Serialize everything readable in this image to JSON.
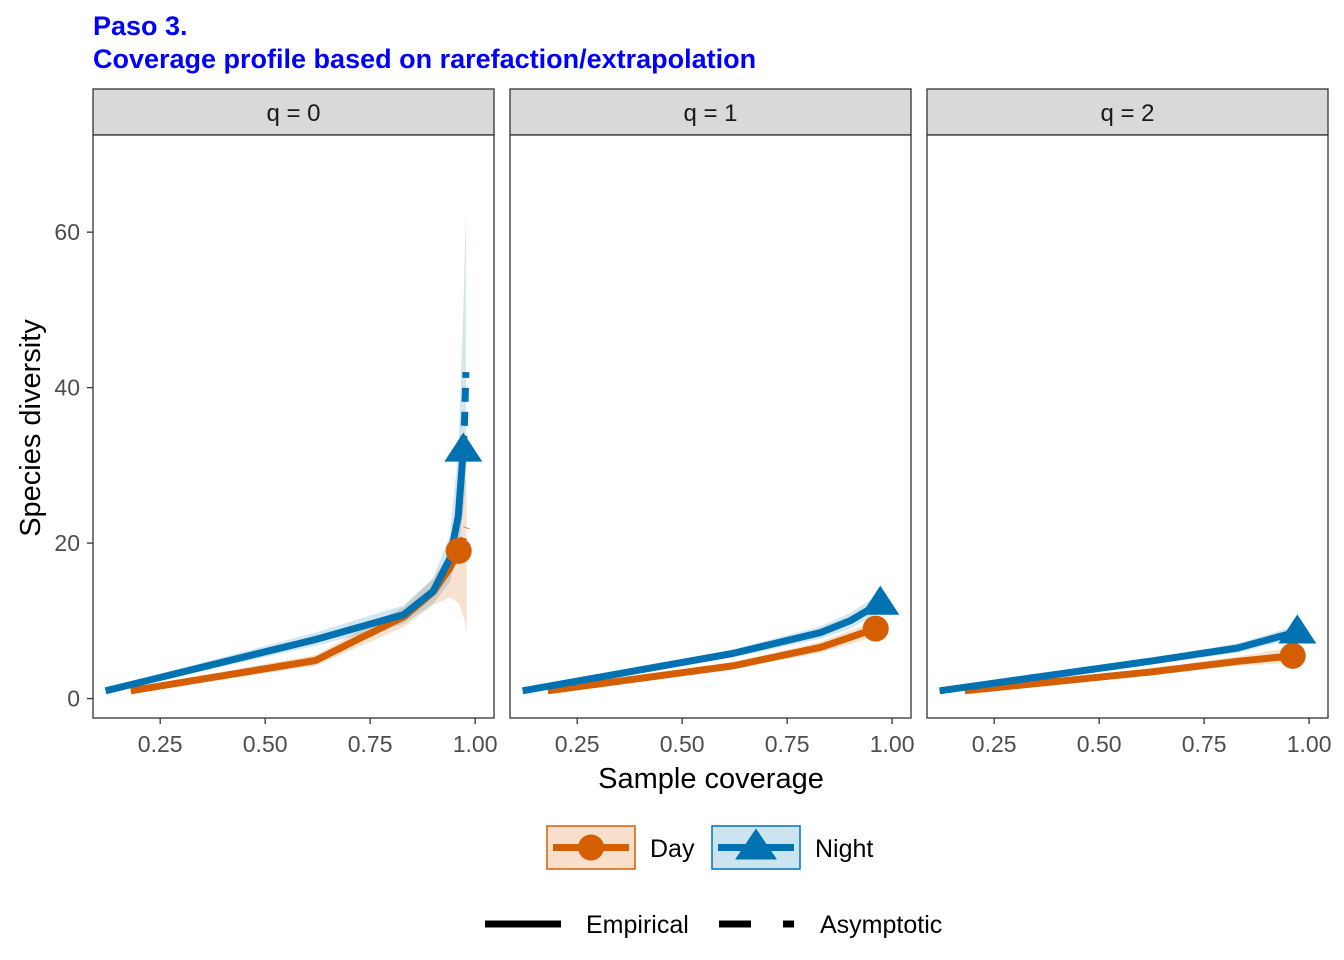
{
  "title": {
    "line1": "Paso 3.",
    "line2": "Coverage profile based on rarefaction/extrapolation",
    "color": "#0000ff"
  },
  "chart_data": {
    "type": "line",
    "xlabel": "Sample coverage",
    "ylabel": "Species diversity",
    "xlim": [
      0.09,
      1.045
    ],
    "ylim": [
      -2.5,
      72.5
    ],
    "xticks": [
      0.25,
      0.5,
      0.75,
      1.0
    ],
    "xtick_labels": [
      "0.25",
      "0.50",
      "0.75",
      "1.00"
    ],
    "yticks": [
      0,
      20,
      40,
      60
    ],
    "ytick_labels": [
      "0",
      "20",
      "40",
      "60"
    ],
    "grid": false,
    "legend_position": "bottom",
    "colors": {
      "Day": "#d55e00",
      "Night": "#0072b2"
    },
    "panels": [
      {
        "label": "q = 0",
        "series": [
          {
            "name": "Day",
            "observed": [
              0.961,
              19.0
            ],
            "rarefaction": [
              [
                0.18,
                1.0
              ],
              [
                0.62,
                4.9
              ],
              [
                0.72,
                7.6
              ],
              [
                0.83,
                10.5
              ],
              [
                0.9,
                13.7
              ],
              [
                0.94,
                16.8
              ],
              [
                0.961,
                19.0
              ]
            ],
            "extrapolation": [
              [
                0.961,
                19.0
              ],
              [
                0.97,
                20.3
              ],
              [
                0.98,
                22.0
              ]
            ],
            "ci_upper": [
              [
                0.18,
                1.3
              ],
              [
                0.62,
                5.6
              ],
              [
                0.72,
                8.6
              ],
              [
                0.83,
                11.8
              ],
              [
                0.9,
                15.4
              ],
              [
                0.94,
                18.8
              ],
              [
                0.961,
                22.2
              ],
              [
                0.975,
                29.0
              ],
              [
                0.98,
                27.0
              ]
            ],
            "ci_lower": [
              [
                0.18,
                0.7
              ],
              [
                0.62,
                4.2
              ],
              [
                0.72,
                6.6
              ],
              [
                0.83,
                9.2
              ],
              [
                0.9,
                12.0
              ],
              [
                0.94,
                13.0
              ],
              [
                0.961,
                12.3
              ],
              [
                0.975,
                10.0
              ],
              [
                0.98,
                8.5
              ]
            ]
          },
          {
            "name": "Night",
            "observed": [
              0.972,
              32.0
            ],
            "rarefaction": [
              [
                0.12,
                1.0
              ],
              [
                0.62,
                7.6
              ],
              [
                0.83,
                10.8
              ],
              [
                0.9,
                13.8
              ],
              [
                0.94,
                18.0
              ],
              [
                0.96,
                23.5
              ],
              [
                0.972,
                32.0
              ]
            ],
            "extrapolation": [
              [
                0.972,
                32.0
              ],
              [
                0.975,
                36.0
              ],
              [
                0.978,
                42.0
              ]
            ],
            "ci_upper": [
              [
                0.12,
                1.3
              ],
              [
                0.62,
                8.5
              ],
              [
                0.83,
                12.0
              ],
              [
                0.9,
                15.5
              ],
              [
                0.94,
                21.0
              ],
              [
                0.96,
                32.0
              ],
              [
                0.972,
                50.0
              ],
              [
                0.978,
                63.0
              ]
            ],
            "ci_lower": [
              [
                0.12,
                0.7
              ],
              [
                0.62,
                6.8
              ],
              [
                0.83,
                9.6
              ],
              [
                0.9,
                12.2
              ],
              [
                0.94,
                15.0
              ],
              [
                0.96,
                19.0
              ],
              [
                0.972,
                24.0
              ],
              [
                0.978,
                28.0
              ]
            ]
          }
        ]
      },
      {
        "label": "q = 1",
        "series": [
          {
            "name": "Day",
            "observed": [
              0.961,
              9.0
            ],
            "rarefaction": [
              [
                0.18,
                1.0
              ],
              [
                0.62,
                4.2
              ],
              [
                0.83,
                6.6
              ],
              [
                0.961,
                9.0
              ]
            ],
            "extrapolation": [],
            "ci_upper": [
              [
                0.18,
                1.2
              ],
              [
                0.62,
                4.6
              ],
              [
                0.83,
                7.3
              ],
              [
                0.961,
                10.0
              ]
            ],
            "ci_lower": [
              [
                0.18,
                0.8
              ],
              [
                0.62,
                3.8
              ],
              [
                0.83,
                5.9
              ],
              [
                0.961,
                8.0
              ]
            ]
          },
          {
            "name": "Night",
            "observed": [
              0.972,
              12.3
            ],
            "rarefaction": [
              [
                0.12,
                1.0
              ],
              [
                0.62,
                5.8
              ],
              [
                0.83,
                8.5
              ],
              [
                0.9,
                10.0
              ],
              [
                0.972,
                12.3
              ]
            ],
            "extrapolation": [],
            "ci_upper": [
              [
                0.12,
                1.2
              ],
              [
                0.62,
                6.3
              ],
              [
                0.83,
                9.3
              ],
              [
                0.9,
                11.0
              ],
              [
                0.972,
                13.5
              ]
            ],
            "ci_lower": [
              [
                0.12,
                0.8
              ],
              [
                0.62,
                5.3
              ],
              [
                0.83,
                7.7
              ],
              [
                0.9,
                9.0
              ],
              [
                0.972,
                11.1
              ]
            ]
          }
        ]
      },
      {
        "label": "q = 2",
        "series": [
          {
            "name": "Day",
            "observed": [
              0.961,
              5.5
            ],
            "rarefaction": [
              [
                0.18,
                1.0
              ],
              [
                0.62,
                3.4
              ],
              [
                0.83,
                4.8
              ],
              [
                0.961,
                5.5
              ]
            ],
            "extrapolation": [],
            "ci_upper": [
              [
                0.18,
                1.2
              ],
              [
                0.62,
                3.8
              ],
              [
                0.83,
                5.4
              ],
              [
                0.961,
                6.6
              ]
            ],
            "ci_lower": [
              [
                0.18,
                0.8
              ],
              [
                0.62,
                3.0
              ],
              [
                0.83,
                4.2
              ],
              [
                0.961,
                4.6
              ]
            ]
          },
          {
            "name": "Night",
            "observed": [
              0.972,
              8.6
            ],
            "rarefaction": [
              [
                0.12,
                1.0
              ],
              [
                0.62,
                4.8
              ],
              [
                0.83,
                6.5
              ],
              [
                0.972,
                8.6
              ]
            ],
            "extrapolation": [],
            "ci_upper": [
              [
                0.12,
                1.2
              ],
              [
                0.62,
                5.2
              ],
              [
                0.83,
                7.1
              ],
              [
                0.972,
                9.4
              ]
            ],
            "ci_lower": [
              [
                0.12,
                0.8
              ],
              [
                0.62,
                4.4
              ],
              [
                0.83,
                5.9
              ],
              [
                0.972,
                7.8
              ]
            ]
          }
        ]
      }
    ],
    "legend": {
      "series": [
        {
          "name": "Day",
          "marker": "circle"
        },
        {
          "name": "Night",
          "marker": "triangle"
        }
      ],
      "linetypes": [
        {
          "name": "Empirical",
          "style": "solid"
        },
        {
          "name": "Asymptotic",
          "style": "dashed"
        }
      ]
    }
  }
}
